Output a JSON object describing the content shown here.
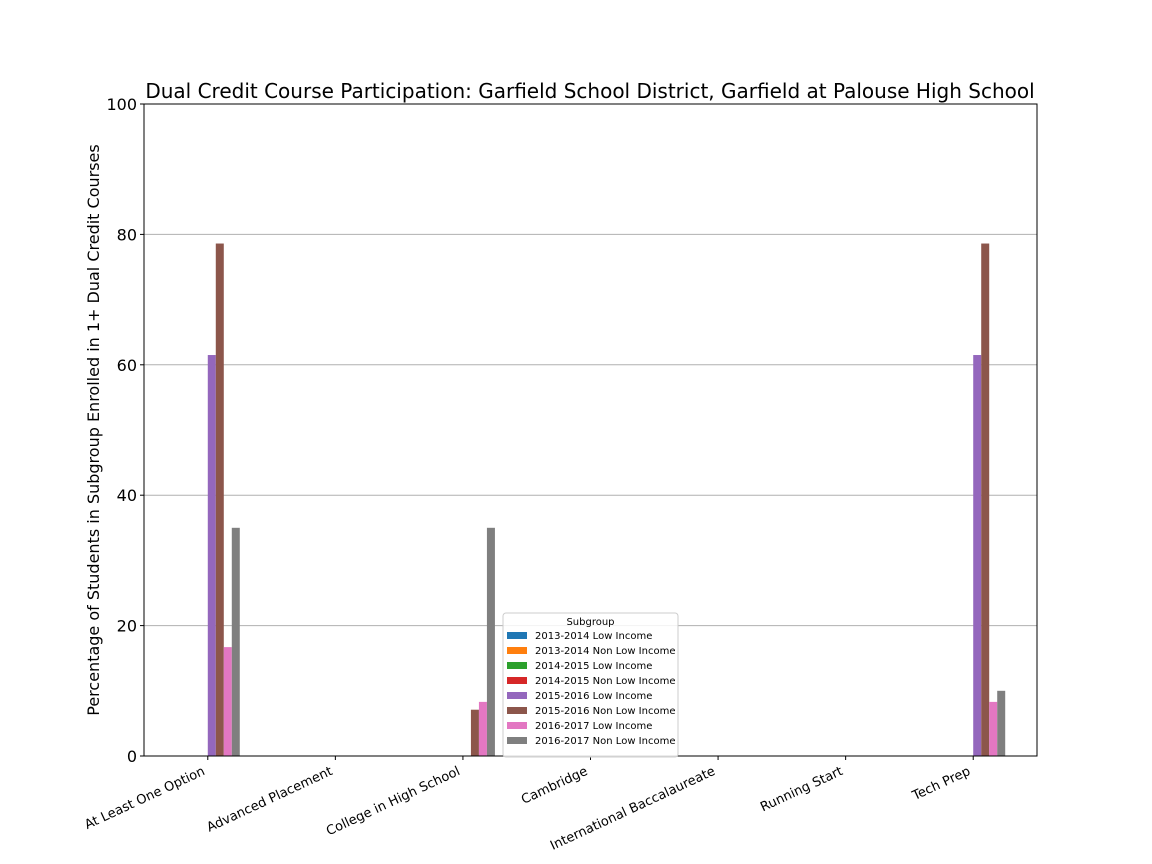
{
  "chart_data": {
    "type": "bar",
    "title": "Dual Credit Course Participation: Garfield School District, Garfield at Palouse High School",
    "xlabel": "",
    "ylabel": "Percentage of Students in Subgroup Enrolled in 1+ Dual Credit Courses",
    "ylim": [
      0,
      100
    ],
    "yticks": [
      "0",
      "20",
      "40",
      "60",
      "80",
      "100"
    ],
    "grid": "horizontal",
    "categories": [
      "At Least One Option",
      "Advanced Placement",
      "College in High School",
      "Cambridge",
      "International Baccalaureate",
      "Running Start",
      "Tech Prep"
    ],
    "legend": {
      "title": "Subgroup",
      "placement": "lower-center"
    },
    "series": [
      {
        "name": "2013-2014 Low Income",
        "color": "#1f77b4",
        "values": [
          0,
          0,
          0,
          0,
          0,
          0,
          0
        ]
      },
      {
        "name": "2013-2014 Non Low Income",
        "color": "#ff7f0e",
        "values": [
          0,
          0,
          0,
          0,
          0,
          0,
          0
        ]
      },
      {
        "name": "2014-2015 Low Income",
        "color": "#2ca02c",
        "values": [
          0,
          0,
          0,
          0,
          0,
          0,
          0
        ]
      },
      {
        "name": "2014-2015 Non Low Income",
        "color": "#d62728",
        "values": [
          0,
          0,
          0,
          0,
          0,
          0,
          0
        ]
      },
      {
        "name": "2015-2016 Low Income",
        "color": "#9467bd",
        "values": [
          61.5,
          0,
          0,
          0,
          0,
          0,
          61.5
        ]
      },
      {
        "name": "2015-2016 Non Low Income",
        "color": "#8c564b",
        "values": [
          78.6,
          0,
          7.1,
          0,
          0,
          0,
          78.6
        ]
      },
      {
        "name": "2016-2017 Low Income",
        "color": "#e377c2",
        "values": [
          16.7,
          0,
          8.3,
          0,
          0,
          0,
          8.3
        ]
      },
      {
        "name": "2016-2017 Non Low Income",
        "color": "#7f7f7f",
        "values": [
          35.0,
          0,
          35.0,
          0,
          0,
          0,
          10.0
        ]
      }
    ]
  }
}
